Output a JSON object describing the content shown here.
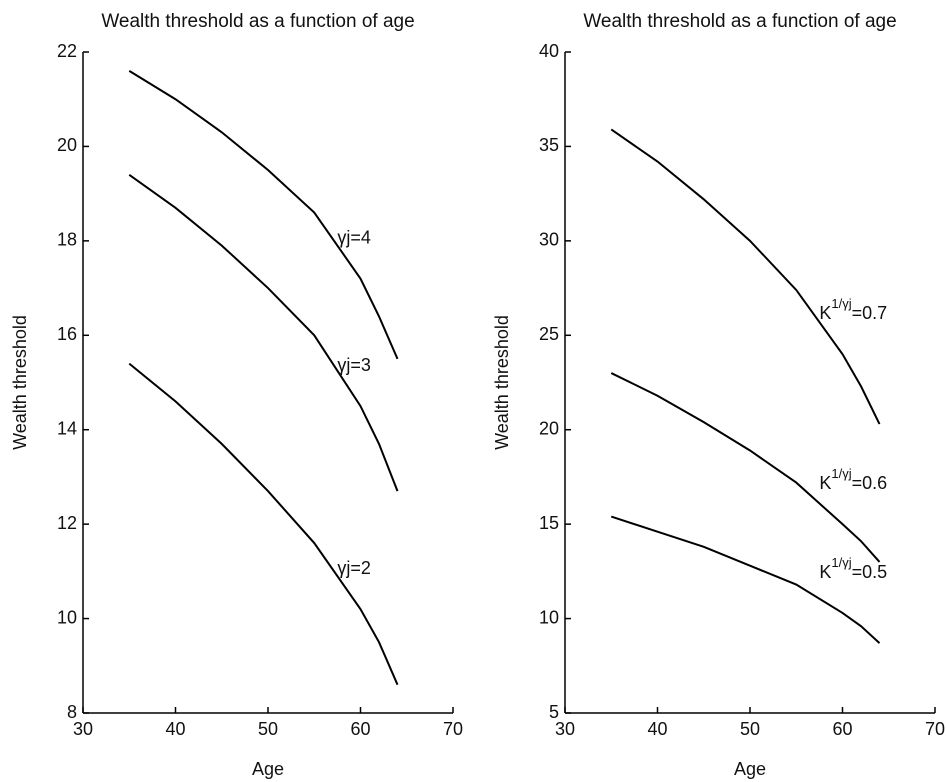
{
  "chart_data": [
    {
      "type": "line",
      "title": "Wealth threshold as a function of age",
      "xlabel": "Age",
      "ylabel": "Wealth threshold",
      "xlim": [
        30,
        70
      ],
      "xticks": [
        30,
        40,
        50,
        60,
        70
      ],
      "ylim": [
        8,
        22
      ],
      "yticks": [
        8,
        10,
        12,
        14,
        16,
        18,
        20,
        22
      ],
      "x": [
        35,
        40,
        45,
        50,
        55,
        60,
        62,
        64
      ],
      "series": [
        {
          "color": "#000000",
          "label": {
            "base": "γj",
            "rest": "=4"
          },
          "values": [
            21.6,
            21.0,
            20.3,
            19.5,
            18.6,
            17.2,
            16.4,
            15.5
          ]
        },
        {
          "color": "#000000",
          "label": {
            "base": "γj",
            "rest": "=3"
          },
          "values": [
            19.4,
            18.7,
            17.9,
            17.0,
            16.0,
            14.5,
            13.7,
            12.7
          ]
        },
        {
          "color": "#000000",
          "label": {
            "base": "γj",
            "rest": "=2"
          },
          "values": [
            15.4,
            14.6,
            13.7,
            12.7,
            11.6,
            10.2,
            9.5,
            8.6
          ]
        }
      ]
    },
    {
      "type": "line",
      "title": "Wealth threshold as a function of age",
      "xlabel": "Age",
      "ylabel": "Wealth threshold",
      "xlim": [
        30,
        70
      ],
      "xticks": [
        30,
        40,
        50,
        60,
        70
      ],
      "ylim": [
        5,
        40
      ],
      "yticks": [
        5,
        10,
        15,
        20,
        25,
        30,
        35,
        40
      ],
      "x": [
        35,
        40,
        45,
        50,
        55,
        60,
        62,
        64
      ],
      "series": [
        {
          "color": "#000000",
          "label": {
            "base": "K",
            "sup": "1/γj",
            "rest": "=0.7"
          },
          "values": [
            35.9,
            34.2,
            32.2,
            30.0,
            27.4,
            24.0,
            22.3,
            20.3
          ]
        },
        {
          "color": "#000000",
          "label": {
            "base": "K",
            "sup": "1/γj",
            "rest": "=0.6"
          },
          "values": [
            23.0,
            21.8,
            20.4,
            18.9,
            17.2,
            15.0,
            14.1,
            13.0
          ]
        },
        {
          "color": "#000000",
          "label": {
            "base": "K",
            "sup": "1/γj",
            "rest": "=0.5"
          },
          "values": [
            15.4,
            14.6,
            13.8,
            12.8,
            11.8,
            10.3,
            9.6,
            8.7
          ]
        }
      ]
    }
  ]
}
